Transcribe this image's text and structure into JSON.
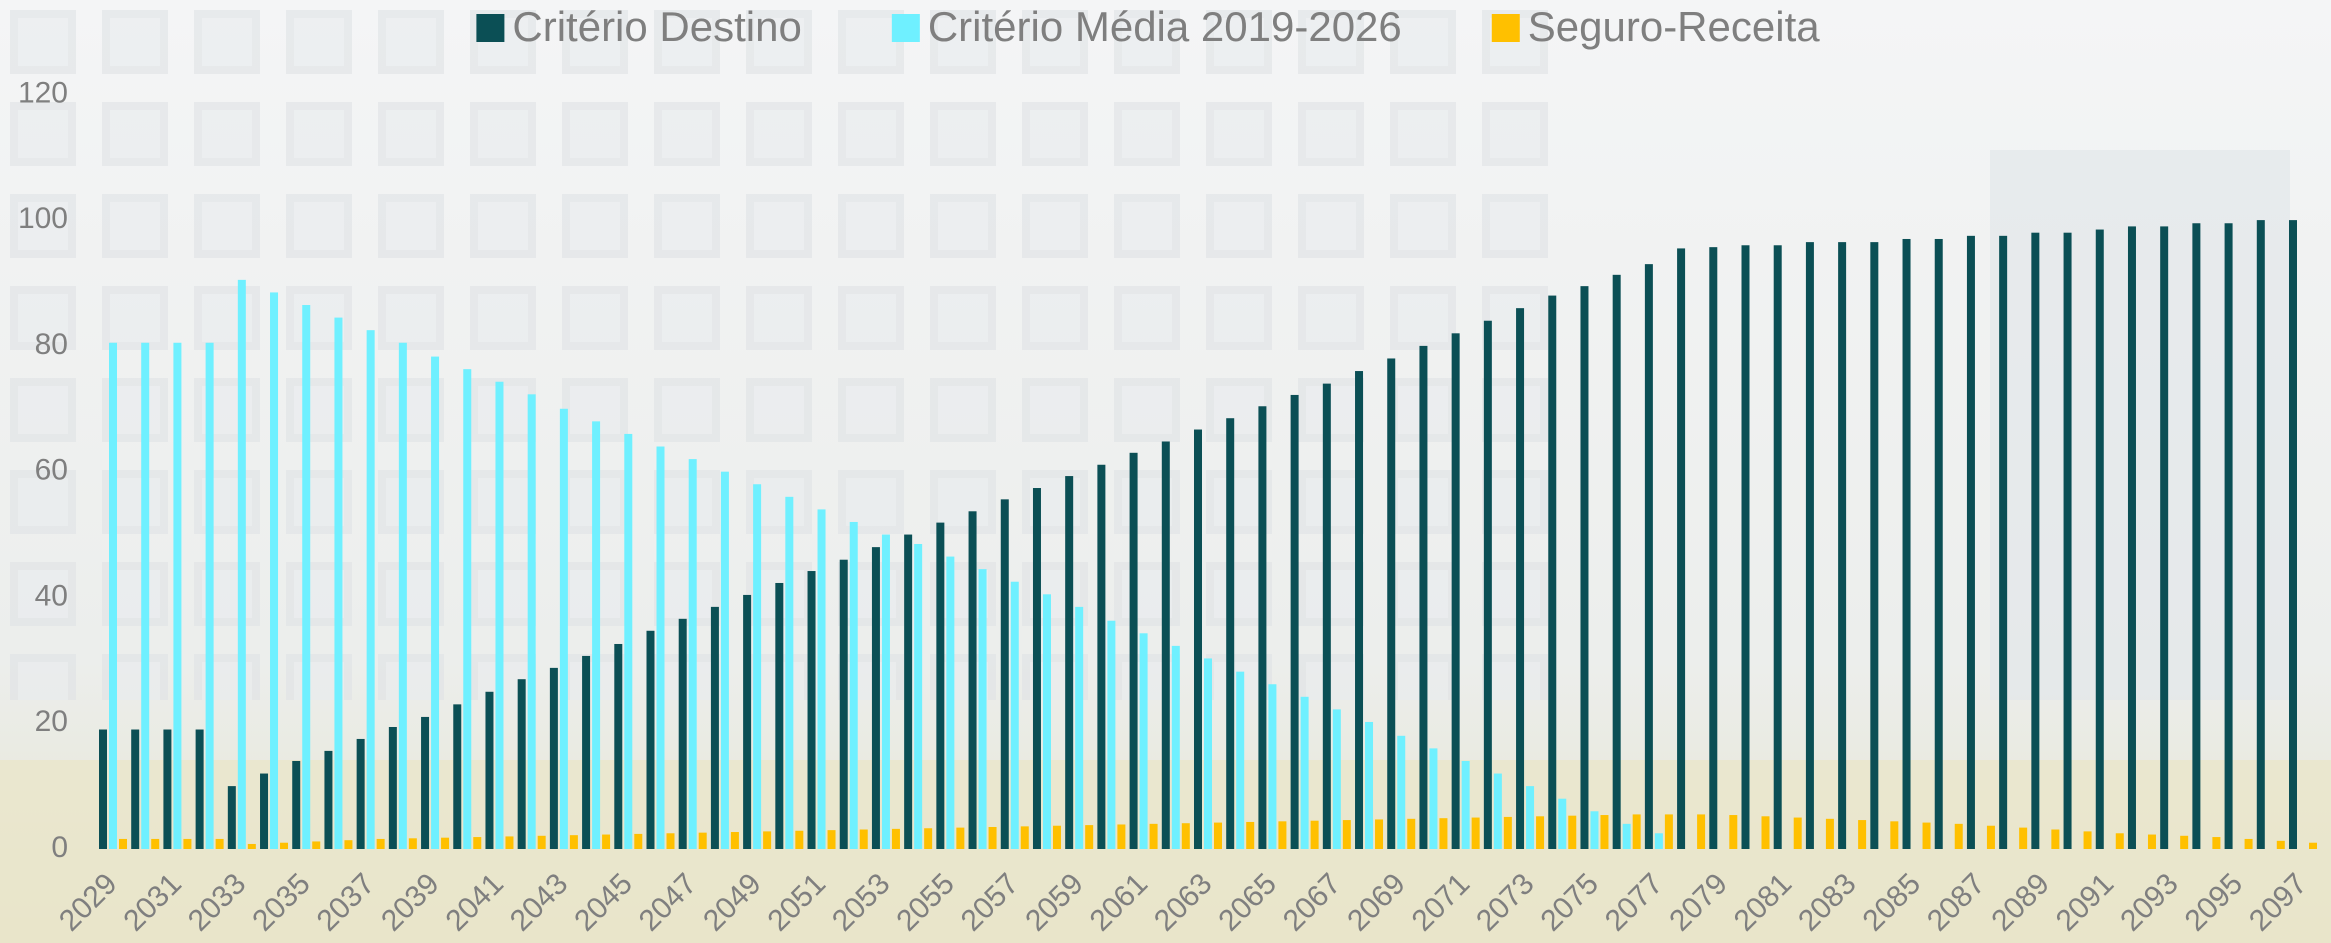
{
  "chart_data": {
    "type": "bar",
    "categories": [
      "2029",
      null,
      "2031",
      null,
      "2033",
      null,
      "2035",
      null,
      "2037",
      null,
      "2039",
      null,
      "2041",
      null,
      "2043",
      null,
      "2045",
      null,
      "2047",
      null,
      "2049",
      null,
      "2051",
      null,
      "2053",
      null,
      "2055",
      null,
      "2057",
      null,
      "2059",
      null,
      "2061",
      null,
      "2063",
      null,
      "2065",
      null,
      "2067",
      null,
      "2069",
      null,
      "2071",
      null,
      "2073",
      null,
      "2075",
      null,
      "2077",
      null,
      "2079",
      null,
      "2081",
      null,
      "2083",
      null,
      "2085",
      null,
      "2087",
      null,
      "2089",
      null,
      "2091",
      null,
      "2093",
      null,
      "2095",
      null,
      "2097"
    ],
    "series": [
      {
        "name": "Critério Destino",
        "color": "#0b4f55",
        "values": [
          19,
          19,
          19,
          19,
          10,
          12,
          14,
          15.6,
          17.5,
          19.4,
          21,
          23,
          25,
          27,
          28.8,
          30.7,
          32.6,
          34.7,
          36.6,
          38.5,
          40.4,
          42.3,
          44.2,
          46,
          48,
          50,
          51.9,
          53.7,
          55.6,
          57.4,
          59.3,
          61.1,
          63,
          64.8,
          66.7,
          68.5,
          70.4,
          72.2,
          74,
          76,
          78,
          80,
          82,
          84,
          86,
          88,
          89.5,
          91.3,
          93,
          95.5,
          95.7,
          96,
          96,
          96.5,
          96.5,
          96.5,
          97,
          97,
          97.5,
          97.5,
          98,
          98,
          98.5,
          99,
          99,
          99.5,
          99.5,
          100,
          100
        ]
      },
      {
        "name": "Critério Média 2019-2026",
        "color": "#6ff0ff",
        "values": [
          80.5,
          80.5,
          80.5,
          80.5,
          90.5,
          88.5,
          86.5,
          84.5,
          82.5,
          80.5,
          78.3,
          76.3,
          74.3,
          72.3,
          70,
          68,
          66,
          64,
          62,
          60,
          58,
          56,
          54,
          52,
          50,
          48.5,
          46.5,
          44.5,
          42.5,
          40.5,
          38.5,
          36.3,
          34.3,
          32.3,
          30.3,
          28.2,
          26.2,
          24.2,
          22.2,
          20.2,
          18,
          16,
          14,
          12,
          10,
          8,
          6,
          4,
          2.5,
          0,
          0,
          0,
          0,
          0,
          0,
          0,
          0,
          0,
          0,
          0,
          0,
          0,
          0,
          0,
          0,
          0,
          0,
          0,
          0
        ]
      },
      {
        "name": "Seguro-Receita",
        "color": "#ffc000",
        "values": [
          1.6,
          1.6,
          1.6,
          1.6,
          0.8,
          1,
          1.2,
          1.4,
          1.6,
          1.7,
          1.8,
          1.9,
          2,
          2.1,
          2.2,
          2.3,
          2.4,
          2.5,
          2.6,
          2.7,
          2.8,
          2.9,
          3,
          3.1,
          3.2,
          3.3,
          3.4,
          3.5,
          3.6,
          3.7,
          3.8,
          3.9,
          4,
          4.1,
          4.2,
          4.3,
          4.4,
          4.5,
          4.6,
          4.7,
          4.8,
          4.9,
          5,
          5.1,
          5.2,
          5.3,
          5.4,
          5.5,
          5.5,
          5.5,
          5.4,
          5.2,
          5,
          4.8,
          4.6,
          4.4,
          4.2,
          4,
          3.7,
          3.4,
          3.1,
          2.8,
          2.5,
          2.3,
          2.1,
          1.9,
          1.6,
          1.3,
          1
        ]
      }
    ],
    "ylim": [
      0,
      135
    ],
    "yticks": [
      0,
      20,
      40,
      60,
      80,
      100,
      120
    ],
    "legend": "top",
    "grid": false
  }
}
